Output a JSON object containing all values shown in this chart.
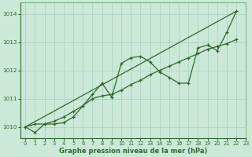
{
  "bg_color": "#cce8d8",
  "grid_color": "#aacfbc",
  "line_color": "#2d6a2d",
  "xlabel": "Graphe pression niveau de la mer (hPa)",
  "xlim": [
    -0.5,
    23
  ],
  "ylim": [
    1009.6,
    1014.4
  ],
  "yticks": [
    1010,
    1011,
    1012,
    1013,
    1014
  ],
  "xticks": [
    0,
    1,
    2,
    3,
    4,
    5,
    6,
    7,
    8,
    9,
    10,
    11,
    12,
    13,
    14,
    15,
    16,
    17,
    18,
    19,
    20,
    21,
    22,
    23
  ],
  "series1_x": [
    0,
    1,
    2,
    3,
    4,
    5,
    6,
    7,
    8,
    9,
    10,
    11,
    12,
    13,
    14,
    15,
    16,
    17,
    18,
    19,
    20,
    21,
    22
  ],
  "series1_y": [
    1010.0,
    1009.8,
    1010.1,
    1010.1,
    1010.15,
    1010.35,
    1010.75,
    1011.15,
    1011.55,
    1011.05,
    1012.25,
    1012.45,
    1012.5,
    1012.3,
    1011.95,
    1011.75,
    1011.55,
    1011.55,
    1012.8,
    1012.9,
    1012.7,
    1013.35,
    1014.1
  ],
  "series2_x": [
    0,
    1,
    2,
    3,
    4,
    5,
    6,
    7,
    8,
    9,
    10,
    11,
    12,
    13,
    14,
    15,
    16,
    17,
    18,
    19,
    20,
    21,
    22
  ],
  "series2_y": [
    1010.0,
    1010.1,
    1010.1,
    1010.2,
    1010.35,
    1010.55,
    1010.75,
    1011.0,
    1011.1,
    1011.15,
    1011.3,
    1011.5,
    1011.65,
    1011.85,
    1012.0,
    1012.15,
    1012.3,
    1012.45,
    1012.6,
    1012.75,
    1012.85,
    1012.95,
    1013.1
  ],
  "series3_x": [
    0,
    22
  ],
  "series3_y": [
    1010.0,
    1014.1
  ]
}
